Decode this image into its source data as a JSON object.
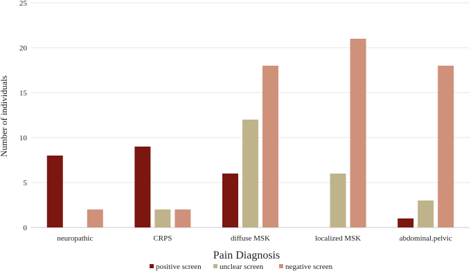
{
  "chart_data": {
    "type": "bar",
    "title": "",
    "xlabel": "Pain Diagnosis",
    "ylabel": "Number of individuals",
    "ylim": [
      0,
      25
    ],
    "yticks": [
      0,
      5,
      10,
      15,
      20,
      25
    ],
    "grid": true,
    "legend_position": "bottom",
    "categories": [
      "neuropathic",
      "CRPS",
      "diffuse MSK",
      "localized MSK",
      "abdominal.pelvic"
    ],
    "series": [
      {
        "name": "positive screen",
        "color": "#7b1610",
        "values": [
          8,
          9,
          6,
          0,
          1
        ]
      },
      {
        "name": "unclear screen",
        "color": "#bfb38b",
        "values": [
          0,
          2,
          12,
          6,
          3
        ]
      },
      {
        "name": "negative screen",
        "color": "#cf917a",
        "values": [
          2,
          2,
          18,
          21,
          18
        ]
      }
    ]
  }
}
